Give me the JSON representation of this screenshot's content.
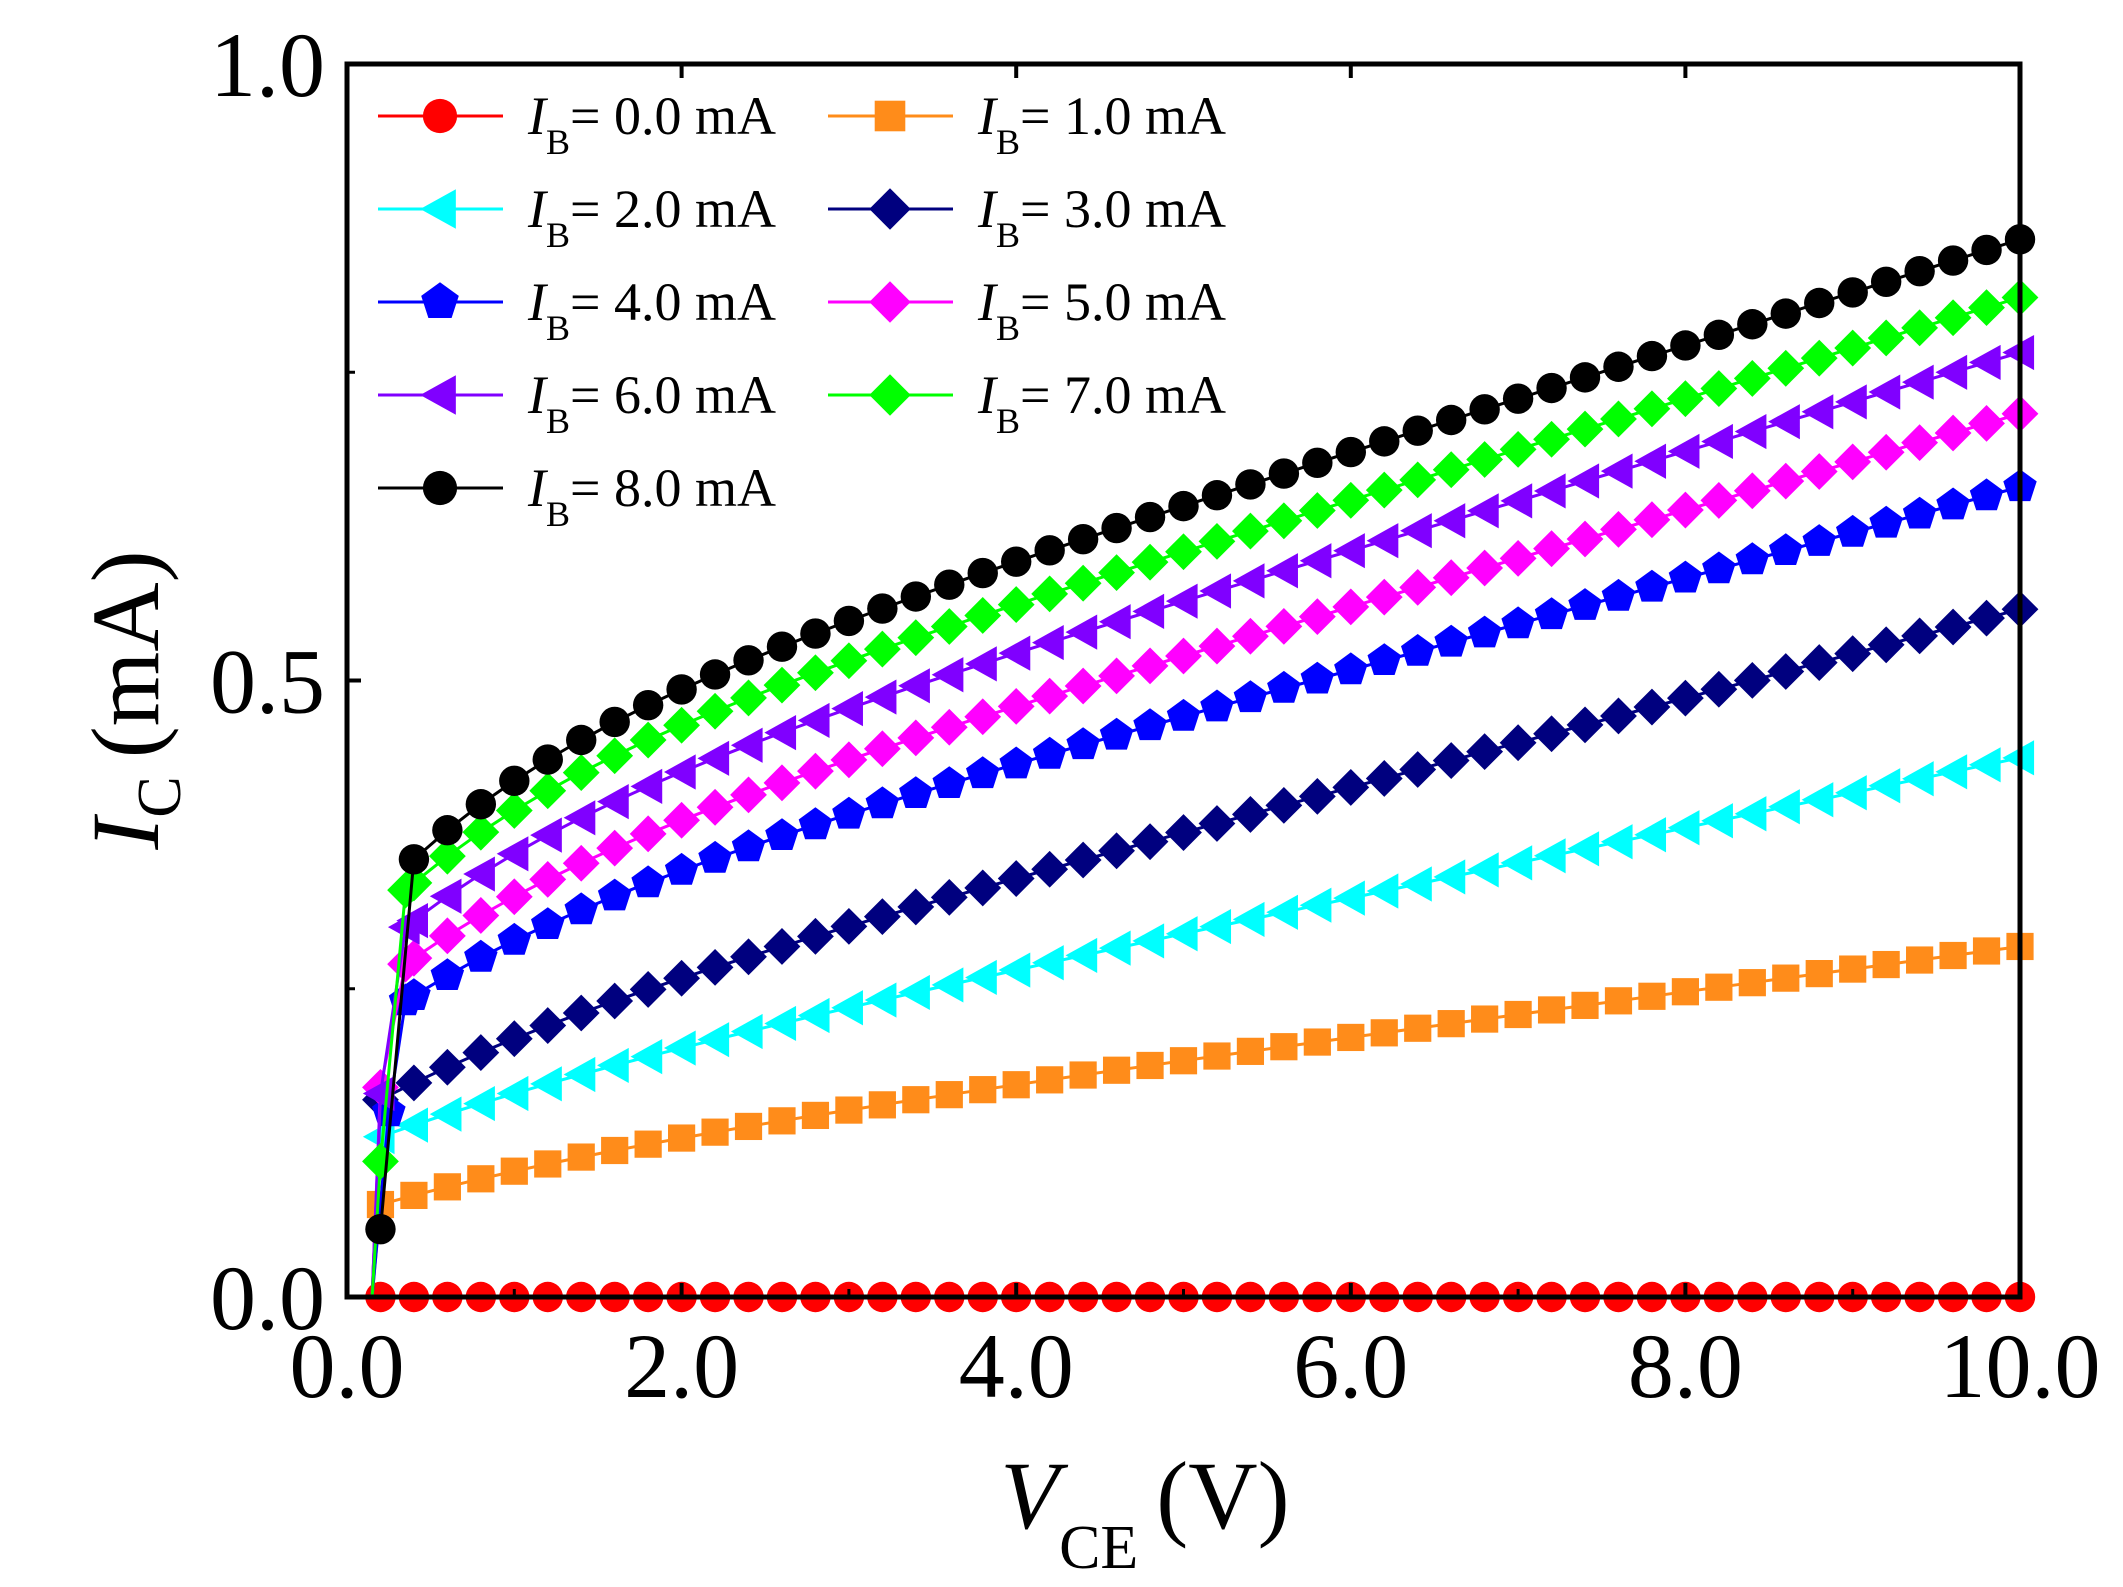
{
  "chart_data": {
    "type": "line",
    "title": "",
    "xlabel": {
      "symbol": "V",
      "subscript": "CE",
      "unit": "(V)"
    },
    "ylabel": {
      "symbol": "I",
      "subscript": "C",
      "unit": "(mA)"
    },
    "xlim": [
      0,
      10
    ],
    "ylim": [
      0,
      1
    ],
    "xticks": [
      0,
      2,
      4,
      6,
      8,
      10
    ],
    "xtick_labels": [
      "0.0",
      "2.0",
      "4.0",
      "6.0",
      "8.0",
      "10.0"
    ],
    "yticks": [
      0,
      0.5,
      1.0
    ],
    "ytick_labels": [
      "0.0",
      "0.5",
      "1.0"
    ],
    "y_minor_ticks": [
      0.25,
      0.75
    ],
    "legend_position": "top-left",
    "legend_prefix": {
      "symbol": "I",
      "subscript": "B"
    },
    "series": [
      {
        "name": "0.0 mA",
        "color": "#ff0000",
        "marker": "circle",
        "knee_v": 0.2,
        "knee_i": 0.0,
        "slope": 0.0,
        "k": 0.0,
        "tau": 1.0,
        "low_points": [
          [
            0.15,
            0.0
          ]
        ]
      },
      {
        "name": "1.0 mA",
        "color": "#ff8c1a",
        "marker": "square",
        "knee_v": 0.2,
        "knee_i": 0.075,
        "slope": 0.0183,
        "k": 0.03,
        "tau": 1.5,
        "low_points": [
          [
            0.15,
            0.0
          ]
        ]
      },
      {
        "name": "2.0 mA",
        "color": "#00ffff",
        "marker": "triangle-left",
        "knee_v": 0.2,
        "knee_i": 0.13,
        "slope": 0.0283,
        "k": 0.03,
        "tau": 1.5,
        "low_points": [
          [
            0.15,
            0.0
          ]
        ]
      },
      {
        "name": "3.0 mA",
        "color": "#00007f",
        "marker": "diamond",
        "knee_v": 0.2,
        "knee_i": 0.16,
        "slope": 0.036,
        "k": 0.045,
        "tau": 1.3,
        "low_points": [
          [
            0.15,
            0.0
          ]
        ]
      },
      {
        "name": "4.0 mA",
        "color": "#0000ff",
        "marker": "pentagon",
        "knee_v": 0.35,
        "knee_i": 0.24,
        "slope": 0.037,
        "k": 0.06,
        "tau": 1.2,
        "low_points": [
          [
            0.15,
            0.0
          ],
          [
            0.25,
            0.15
          ]
        ]
      },
      {
        "name": "5.0 mA",
        "color": "#ff00ff",
        "marker": "diamond",
        "knee_v": 0.35,
        "knee_i": 0.27,
        "slope": 0.039,
        "k": 0.07,
        "tau": 1.2,
        "low_points": [
          [
            0.15,
            0.0
          ],
          [
            0.2,
            0.17
          ]
        ]
      },
      {
        "name": "6.0 mA",
        "color": "#8000ff",
        "marker": "triangle-left",
        "knee_v": 0.35,
        "knee_i": 0.3,
        "slope": 0.04,
        "k": 0.08,
        "tau": 1.2,
        "low_points": [
          [
            0.15,
            0.0
          ],
          [
            0.2,
            0.165
          ]
        ]
      },
      {
        "name": "7.0 mA",
        "color": "#00ff00",
        "marker": "diamond",
        "knee_v": 0.35,
        "knee_i": 0.33,
        "slope": 0.041,
        "k": 0.085,
        "tau": 1.1,
        "low_points": [
          [
            0.15,
            0.0
          ],
          [
            0.2,
            0.11
          ]
        ]
      },
      {
        "name": "8.0 mA",
        "color": "#000000",
        "marker": "circle",
        "knee_v": 0.4,
        "knee_i": 0.355,
        "slope": 0.043,
        "k": 0.09,
        "tau": 1.1,
        "low_points": [
          [
            0.2,
            0.055
          ]
        ]
      }
    ]
  }
}
